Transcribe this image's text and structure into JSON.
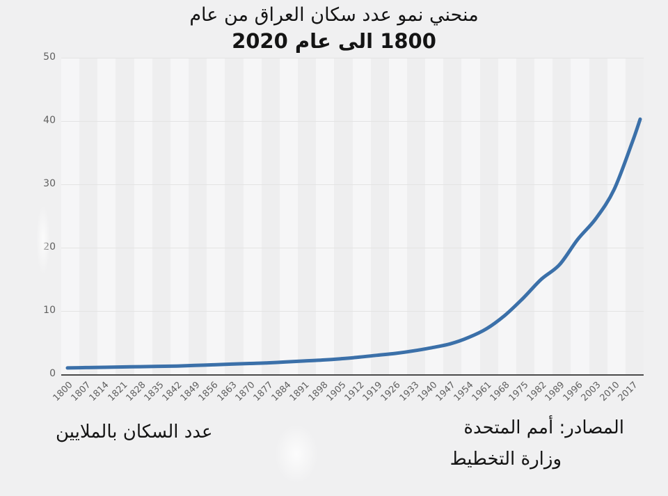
{
  "title": {
    "line1": "منحني نمو عدد سكان العراق من عام",
    "line2": "1800 الى عام 2020"
  },
  "footer": {
    "axis_note": "عدد السكان بالملايين",
    "sources_line1": "المصادر: أمم المتحدة",
    "sources_line2": "وزارة التخطيط"
  },
  "colors": {
    "background": "#f0f0f1",
    "band_light": "#f6f6f7",
    "band_dark": "#eeeeef",
    "gridline": "#e3e3e3",
    "axis_line": "#4a4a4a",
    "tick_text": "#5f5f5f",
    "curve": "#3b70a9"
  },
  "chart_data": {
    "type": "line",
    "title": "منحني نمو عدد سكان العراق من عام 1800 الى عام 2020",
    "xlabel": "",
    "ylabel": "عدد السكان بالملايين",
    "x": [
      1800,
      1807,
      1814,
      1821,
      1828,
      1835,
      1842,
      1849,
      1856,
      1863,
      1870,
      1877,
      1884,
      1891,
      1898,
      1905,
      1912,
      1919,
      1926,
      1933,
      1940,
      1947,
      1954,
      1961,
      1968,
      1975,
      1982,
      1989,
      1996,
      2003,
      2010,
      2017,
      2020
    ],
    "series": [
      {
        "name": "عدد السكان بالملايين",
        "values": [
          1.0,
          1.05,
          1.1,
          1.15,
          1.2,
          1.25,
          1.3,
          1.4,
          1.5,
          1.6,
          1.7,
          1.8,
          1.95,
          2.1,
          2.25,
          2.45,
          2.7,
          3.0,
          3.3,
          3.7,
          4.2,
          4.8,
          5.8,
          7.2,
          9.3,
          12.0,
          15.0,
          17.3,
          21.3,
          24.6,
          29.2,
          36.7,
          40.3
        ]
      }
    ],
    "x_tick_labels": [
      "1800",
      "1807",
      "1814",
      "1821",
      "1828",
      "1835",
      "1842",
      "1849",
      "1856",
      "1863",
      "1870",
      "1877",
      "1884",
      "1891",
      "1898",
      "1905",
      "1912",
      "1919",
      "1926",
      "1933",
      "1940",
      "1947",
      "1954",
      "1961",
      "1968",
      "1975",
      "1982",
      "1989",
      "1996",
      "2003",
      "2010",
      "2017"
    ],
    "y_ticks": [
      0,
      10,
      20,
      30,
      40,
      50
    ],
    "xlim": [
      1800,
      2020
    ],
    "ylim": [
      0,
      50
    ],
    "grid": true,
    "legend": "none",
    "background_bands": "vertical-alternating"
  }
}
